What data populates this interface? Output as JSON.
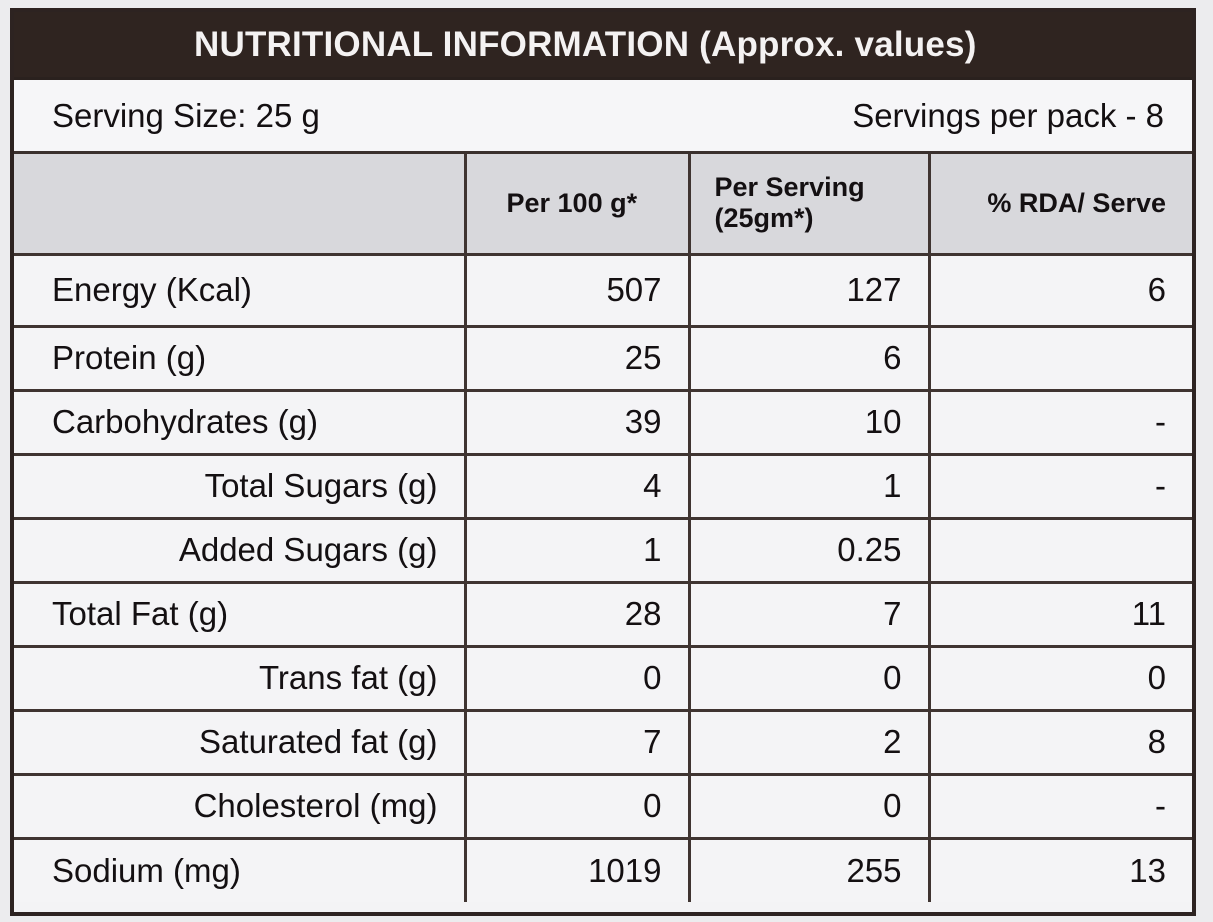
{
  "title": "NUTRITIONAL INFORMATION (Approx. values)",
  "serving_size": "Serving Size: 25 g",
  "servings_per_pack": "Servings per pack - 8",
  "headers": {
    "per_100g": "Per 100 g*",
    "per_serving_line1": "Per Serving",
    "per_serving_line2": "(25gm*)",
    "rda": "% RDA/ Serve"
  },
  "rows": [
    {
      "label": "Energy (Kcal)",
      "per_100g": "507",
      "per_serving": "127",
      "rda": "6"
    },
    {
      "label": "Protein (g)",
      "per_100g": "25",
      "per_serving": "6",
      "rda": ""
    },
    {
      "label": "Carbohydrates (g)",
      "per_100g": "39",
      "per_serving": "10",
      "rda": "-"
    },
    {
      "label": "Total Sugars (g)",
      "per_100g": "4",
      "per_serving": "1",
      "rda": "-"
    },
    {
      "label": "Added Sugars (g)",
      "per_100g": "1",
      "per_serving": "0.25",
      "rda": ""
    },
    {
      "label": "Total Fat (g)",
      "per_100g": "28",
      "per_serving": "7",
      "rda": "11"
    },
    {
      "label": "Trans fat (g)",
      "per_100g": "0",
      "per_serving": "0",
      "rda": "0"
    },
    {
      "label": "Saturated fat (g)",
      "per_100g": "7",
      "per_serving": "2",
      "rda": "8"
    },
    {
      "label": "Cholesterol (mg)",
      "per_100g": "0",
      "per_serving": "0",
      "rda": "-"
    },
    {
      "label": "Sodium (mg)",
      "per_100g": "1019",
      "per_serving": "255",
      "rda": "13"
    }
  ],
  "colors": {
    "title_bar": "#2f2420",
    "header_row": "#d8d8dc",
    "border": "#3f3431"
  }
}
